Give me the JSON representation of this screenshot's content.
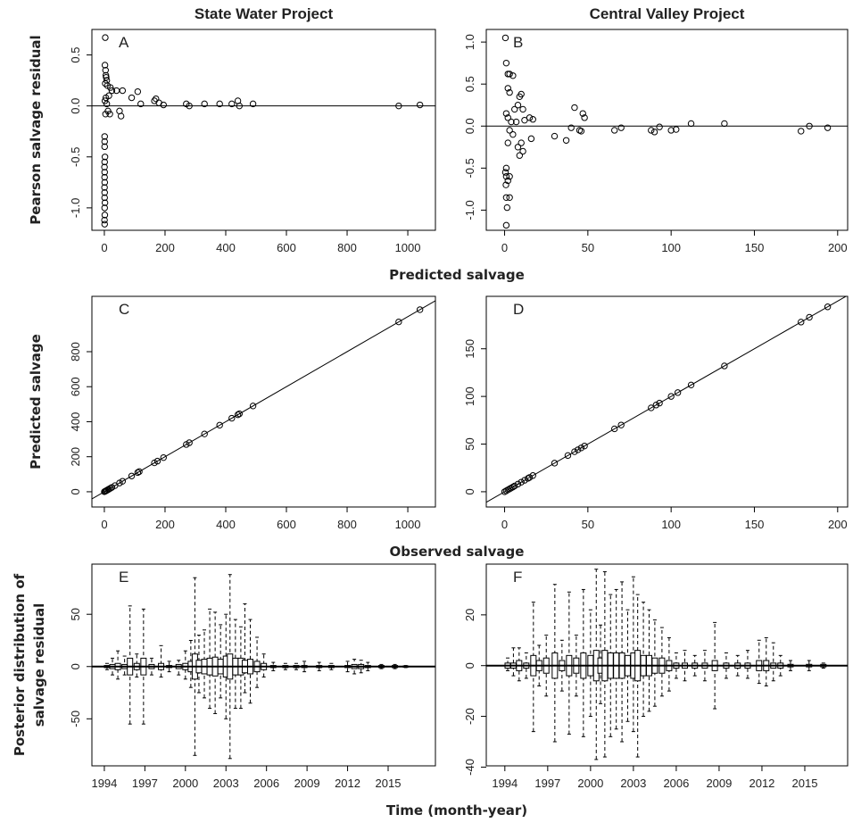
{
  "chart_data": [
    {
      "type": "scatter",
      "title": "State Water Project",
      "annotation": "A",
      "ylabel": "Pearson salvage residual",
      "xlabel": "Predicted salvage",
      "xlim": [
        -41,
        1091
      ],
      "ylim": [
        -1.22,
        0.75
      ],
      "xticks": [
        0,
        200,
        400,
        600,
        800,
        1000
      ],
      "yticks": [
        {
          "value": 0.5,
          "label": "0.5"
        },
        {
          "value": 0,
          "label": "0.0"
        },
        {
          "value": -0.5,
          "label": "-0.5"
        },
        {
          "value": -1,
          "label": "-1.0"
        }
      ],
      "hline": 0,
      "x": [
        3,
        2,
        4,
        5,
        6,
        8,
        3,
        10,
        20,
        25,
        15,
        5,
        2,
        8,
        12,
        4,
        18,
        1,
        1,
        1,
        2,
        1,
        0.5,
        1,
        0.8,
        1.2,
        0.6,
        1,
        0.9,
        2,
        1,
        1.5,
        0.5,
        1,
        40,
        55,
        60,
        50,
        90,
        110,
        120,
        165,
        170,
        180,
        195,
        270,
        280,
        330,
        380,
        420,
        440,
        445,
        490,
        970,
        1040
      ],
      "y": [
        0.67,
        0.4,
        0.35,
        0.3,
        0.28,
        0.25,
        0.22,
        0.2,
        0.18,
        0.15,
        0.1,
        0.08,
        0.05,
        0.02,
        -0.05,
        -0.08,
        -0.08,
        -0.3,
        -0.35,
        -0.4,
        -0.5,
        -0.55,
        -0.6,
        -0.65,
        -0.7,
        -0.75,
        -0.8,
        -0.85,
        -0.9,
        -0.95,
        -1.0,
        -1.07,
        -1.12,
        -1.16,
        0.15,
        -0.1,
        0.15,
        -0.05,
        0.08,
        0.14,
        0.02,
        0.05,
        0.07,
        0.03,
        0.01,
        0.02,
        0.0,
        0.02,
        0.02,
        0.02,
        0.05,
        0.0,
        0.02,
        0.0,
        0.01
      ]
    },
    {
      "type": "scatter",
      "title": "Central Valley Project",
      "annotation": "B",
      "xlim": [
        -11,
        206
      ],
      "ylim": [
        -1.24,
        1.15
      ],
      "xticks": [
        0,
        50,
        100,
        150,
        200
      ],
      "yticks": [
        {
          "value": 1,
          "label": "1.0"
        },
        {
          "value": 0.5,
          "label": "0.5"
        },
        {
          "value": 0,
          "label": "0.0"
        },
        {
          "value": -0.5,
          "label": "-0.5"
        },
        {
          "value": -1,
          "label": "-1.0"
        }
      ],
      "hline": 0,
      "x": [
        0.5,
        1,
        2,
        3,
        5,
        2,
        3,
        6,
        8,
        9,
        10,
        11,
        1,
        2,
        4,
        7,
        12,
        15,
        17,
        3,
        5,
        2,
        8,
        9,
        11,
        10,
        16,
        1,
        0.5,
        1,
        2,
        0.8,
        3,
        1,
        3,
        1.5,
        1,
        30,
        37,
        40,
        42,
        45,
        47,
        48,
        46,
        66,
        70,
        88,
        90,
        93,
        100,
        103,
        112,
        132,
        178,
        183,
        194
      ],
      "y": [
        1.05,
        0.75,
        0.62,
        0.62,
        0.6,
        0.45,
        0.4,
        0.2,
        0.25,
        0.35,
        0.38,
        0.2,
        0.15,
        0.1,
        0.05,
        0.05,
        0.07,
        0.1,
        0.08,
        -0.05,
        -0.1,
        -0.2,
        -0.25,
        -0.35,
        -0.3,
        -0.2,
        -0.15,
        -0.5,
        -0.55,
        -0.6,
        -0.65,
        -0.7,
        -0.6,
        -0.85,
        -0.85,
        -0.97,
        -1.18,
        -0.12,
        -0.17,
        -0.02,
        0.22,
        -0.05,
        0.15,
        0.1,
        -0.06,
        -0.05,
        -0.02,
        -0.05,
        -0.07,
        -0.01,
        -0.05,
        -0.04,
        0.03,
        0.03,
        -0.06,
        0.0,
        -0.02
      ]
    },
    {
      "type": "scatter",
      "annotation": "C",
      "ylabel": "Predicted salvage",
      "xlabel": "Observed salvage",
      "xlim": [
        -41,
        1091
      ],
      "ylim": [
        -87,
        1116
      ],
      "xticks": [
        0,
        200,
        400,
        600,
        800,
        1000
      ],
      "yticks": [
        0,
        200,
        400,
        600,
        800
      ],
      "identity_line": true,
      "x": [
        0,
        2,
        5,
        8,
        12,
        15,
        20,
        25,
        35,
        50,
        60,
        90,
        110,
        115,
        165,
        175,
        195,
        270,
        280,
        330,
        380,
        420,
        440,
        445,
        490,
        970,
        1040
      ],
      "y": [
        0,
        2,
        5,
        8,
        12,
        15,
        20,
        25,
        35,
        50,
        60,
        90,
        110,
        115,
        165,
        175,
        195,
        270,
        280,
        330,
        380,
        420,
        440,
        445,
        490,
        970,
        1040
      ]
    },
    {
      "type": "scatter",
      "annotation": "D",
      "xlim": [
        -11,
        206
      ],
      "ylim": [
        -16,
        205
      ],
      "xticks": [
        0,
        50,
        100,
        150,
        200
      ],
      "yticks": [
        0,
        50,
        100,
        150
      ],
      "identity_line": true,
      "x": [
        0,
        1,
        2,
        3,
        4,
        5,
        6,
        8,
        10,
        12,
        14,
        15,
        17,
        30,
        38,
        42,
        44,
        46,
        48,
        66,
        70,
        88,
        91,
        93,
        100,
        104,
        112,
        132,
        178,
        183,
        194
      ],
      "y": [
        0,
        1,
        2,
        3,
        4,
        5,
        6,
        8,
        10,
        12,
        14,
        15,
        17,
        30,
        38,
        42,
        44,
        46,
        48,
        66,
        70,
        88,
        91,
        93,
        100,
        104,
        112,
        132,
        178,
        183,
        194
      ]
    },
    {
      "type": "box",
      "annotation": "E",
      "ylabel": [
        "Posterior distribution of",
        "salvage residual"
      ],
      "xlabel": "Time (month-year)",
      "xlim": [
        1993.08,
        2018.5
      ],
      "ylim": [
        -95,
        98
      ],
      "xticks": [
        1994,
        1997,
        2000,
        2003,
        2006,
        2009,
        2012,
        2015
      ],
      "yticks": [
        -50,
        0,
        50
      ],
      "x": [
        1994.2,
        1994.6,
        1995.0,
        1995.5,
        1995.9,
        1996.4,
        1996.9,
        1997.5,
        1998.2,
        1998.8,
        1999.5,
        2000.0,
        2000.4,
        2000.7,
        2001.0,
        2001.4,
        2001.8,
        2002.2,
        2002.6,
        2003.0,
        2003.3,
        2003.7,
        2004.1,
        2004.4,
        2004.8,
        2005.3,
        2005.8,
        2006.5,
        2007.4,
        2008.2,
        2008.8,
        2009.9,
        2010.8,
        2012.0,
        2012.5,
        2013.0,
        2013.5,
        2014.5,
        2015.5,
        2016.3
      ],
      "whisker_low": [
        -3,
        -8,
        -12,
        -8,
        -55,
        -10,
        -55,
        -8,
        -10,
        -5,
        -8,
        -12,
        -20,
        -85,
        -25,
        -30,
        -40,
        -45,
        -30,
        -50,
        -88,
        -40,
        -40,
        -25,
        -35,
        -20,
        -10,
        -4,
        -3,
        -3,
        -5,
        -4,
        -3,
        -5,
        -7,
        -6,
        -4,
        -2,
        -2,
        -1
      ],
      "q1": [
        -1,
        -2,
        -3,
        -2,
        -8,
        -3,
        -8,
        -2,
        -3,
        -1,
        -2,
        -3,
        -5,
        -12,
        -6,
        -7,
        -8,
        -9,
        -7,
        -10,
        -12,
        -8,
        -8,
        -6,
        -7,
        -5,
        -3,
        -1,
        -1,
        -1,
        -1,
        -1,
        -1,
        -1,
        -2,
        -2,
        -1,
        -1,
        -1,
        -0.5
      ],
      "median": [
        0,
        0,
        0,
        0,
        0,
        0,
        0,
        0,
        0,
        0,
        0,
        0,
        0,
        0,
        0,
        0,
        0,
        0,
        0,
        0,
        0,
        0,
        0,
        0,
        0,
        0,
        0,
        0,
        0,
        0,
        0,
        0,
        0,
        0,
        0,
        0,
        0,
        0,
        0,
        0
      ],
      "q3": [
        1,
        2,
        3,
        2,
        8,
        3,
        8,
        2,
        3,
        1,
        2,
        3,
        5,
        12,
        6,
        7,
        8,
        9,
        7,
        10,
        12,
        8,
        8,
        6,
        7,
        5,
        3,
        1,
        1,
        1,
        1,
        1,
        1,
        1,
        2,
        2,
        1,
        1,
        1,
        0.5
      ],
      "whisker_high": [
        3,
        8,
        15,
        10,
        58,
        12,
        55,
        8,
        20,
        5,
        6,
        15,
        25,
        85,
        30,
        35,
        55,
        52,
        40,
        50,
        88,
        45,
        38,
        60,
        45,
        28,
        12,
        4,
        3,
        3,
        5,
        4,
        3,
        5,
        7,
        6,
        4,
        2,
        2,
        1
      ]
    },
    {
      "type": "box",
      "annotation": "F",
      "xlim": [
        1992.7,
        2018.0
      ],
      "ylim": [
        -39.5,
        40
      ],
      "xticks": [
        1994,
        1997,
        2000,
        2003,
        2006,
        2009,
        2012,
        2015
      ],
      "yticks": [
        -40,
        -20,
        0,
        20
      ],
      "x": [
        1994.2,
        1994.6,
        1995.0,
        1995.5,
        1996.0,
        1996.4,
        1996.9,
        1997.5,
        1998.0,
        1998.5,
        1999.0,
        1999.5,
        2000.0,
        2000.4,
        2000.7,
        2001.0,
        2001.4,
        2001.8,
        2002.2,
        2002.6,
        2003.0,
        2003.3,
        2003.7,
        2004.1,
        2004.5,
        2005.0,
        2005.5,
        2006.0,
        2006.6,
        2007.3,
        2008.0,
        2008.7,
        2009.5,
        2010.3,
        2011.0,
        2011.8,
        2012.3,
        2012.8,
        2013.3,
        2014.0,
        2015.3,
        2016.3
      ],
      "whisker_low": [
        -2,
        -4,
        -6,
        -5,
        -26,
        -8,
        -12,
        -30,
        -10,
        -27,
        -12,
        -28,
        -20,
        -37,
        -15,
        -36,
        -28,
        -25,
        -30,
        -22,
        -26,
        -36,
        -20,
        -18,
        -16,
        -12,
        -10,
        -5,
        -6,
        -4,
        -6,
        -17,
        -5,
        -4,
        -5,
        -7,
        -8,
        -6,
        -4,
        -2,
        -2,
        -1
      ],
      "q1": [
        -1,
        -1,
        -2,
        -1,
        -4,
        -2,
        -3,
        -5,
        -2,
        -4,
        -3,
        -5,
        -4,
        -6,
        -3,
        -6,
        -5,
        -5,
        -5,
        -4,
        -5,
        -6,
        -4,
        -4,
        -3,
        -3,
        -2,
        -1,
        -1,
        -1,
        -1,
        -2,
        -1,
        -1,
        -1,
        -2,
        -2,
        -1,
        -1,
        -0.5,
        -0.5,
        -0.5
      ],
      "median": [
        0,
        0,
        0,
        0,
        0,
        0,
        0,
        0,
        0,
        0,
        0,
        0,
        0,
        0,
        0,
        0,
        0,
        0,
        0,
        0,
        0,
        0,
        0,
        0,
        0,
        0,
        0,
        0,
        0,
        0,
        0,
        0,
        0,
        0,
        0,
        0,
        0,
        0,
        0,
        0,
        0,
        0
      ],
      "q3": [
        1,
        1,
        2,
        1,
        4,
        2,
        3,
        5,
        2,
        4,
        3,
        5,
        4,
        6,
        3,
        6,
        5,
        5,
        5,
        4,
        5,
        6,
        4,
        4,
        3,
        3,
        2,
        1,
        1,
        1,
        1,
        2,
        1,
        1,
        1,
        2,
        2,
        1,
        1,
        0.5,
        0.5,
        0.5
      ],
      "whisker_high": [
        3,
        7,
        7,
        5,
        25,
        8,
        12,
        32,
        10,
        29,
        12,
        30,
        22,
        38,
        16,
        37,
        28,
        30,
        33,
        22,
        35,
        28,
        25,
        22,
        18,
        15,
        11,
        5,
        6,
        4,
        6,
        17,
        5,
        4,
        6,
        10,
        11,
        9,
        4,
        2,
        2,
        1
      ]
    }
  ]
}
